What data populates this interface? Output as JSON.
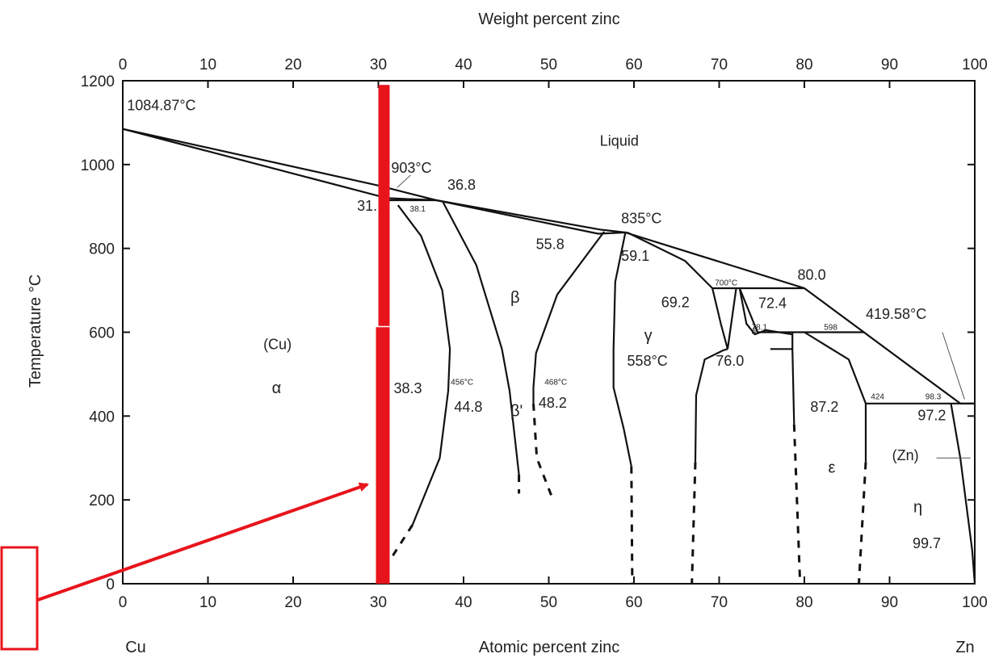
{
  "chart_data": {
    "type": "line",
    "title": "",
    "xlabel_top": "Weight percent zinc",
    "xlabel_bottom": "Atomic percent zinc",
    "ylabel": "Temperature °C",
    "xlim": [
      0,
      100
    ],
    "ylim": [
      0,
      1200
    ],
    "x_ticks": [
      "0",
      "10",
      "20",
      "30",
      "40",
      "50",
      "60",
      "70",
      "80",
      "90",
      "100"
    ],
    "x_ticks_top": [
      "0",
      "10",
      "20",
      "30",
      "40",
      "50",
      "60",
      "70",
      "80",
      "90",
      "100"
    ],
    "y_ticks": [
      "0",
      "200",
      "400",
      "600",
      "800",
      "1000",
      "1200"
    ],
    "endpoint_labels": {
      "left": "Cu",
      "right": "Zn"
    },
    "grid": false,
    "boundaries": [
      {
        "style": "solid",
        "points": [
          [
            0,
            1085
          ],
          [
            30,
            950
          ],
          [
            36.8,
            915
          ],
          [
            56,
            845
          ],
          [
            59,
            838
          ],
          [
            80,
            705
          ],
          [
            98.3,
            430
          ]
        ]
      },
      {
        "style": "solid",
        "points": [
          [
            0,
            1085
          ],
          [
            31,
            920
          ],
          [
            36.8,
            915
          ],
          [
            55.8,
            835
          ],
          [
            59.1,
            838
          ]
        ]
      },
      {
        "style": "solid",
        "points": [
          [
            31,
            915
          ],
          [
            36.8,
            915
          ]
        ]
      },
      {
        "style": "solid",
        "points": [
          [
            32.3,
            903
          ],
          [
            35,
            830
          ],
          [
            37.5,
            700
          ],
          [
            38.4,
            560
          ],
          [
            38.2,
            460
          ],
          [
            37.2,
            300
          ],
          [
            34,
            140
          ]
        ]
      },
      {
        "style": "dash",
        "points": [
          [
            34,
            140
          ],
          [
            31,
            45
          ]
        ]
      },
      {
        "style": "solid",
        "points": [
          [
            37.6,
            910
          ],
          [
            41.5,
            760
          ],
          [
            44.5,
            560
          ],
          [
            45.4,
            460
          ],
          [
            46.5,
            260
          ]
        ]
      },
      {
        "style": "dash",
        "points": [
          [
            46.5,
            260
          ],
          [
            46.5,
            215
          ]
        ]
      },
      {
        "style": "solid",
        "points": [
          [
            56.5,
            840
          ],
          [
            51,
            690
          ],
          [
            48.5,
            550
          ],
          [
            48.2,
            468
          ],
          [
            48.2,
            430
          ]
        ]
      },
      {
        "style": "dash",
        "points": [
          [
            48.2,
            430
          ],
          [
            48.6,
            300
          ],
          [
            50.5,
            200
          ]
        ]
      },
      {
        "style": "solid",
        "points": [
          [
            59,
            838
          ],
          [
            57.8,
            720
          ],
          [
            57.6,
            560
          ],
          [
            57.6,
            468
          ],
          [
            58.8,
            370
          ],
          [
            59.7,
            280
          ]
        ]
      },
      {
        "style": "dash",
        "points": [
          [
            59.7,
            280
          ],
          [
            59.8,
            0
          ]
        ]
      },
      {
        "style": "solid",
        "points": [
          [
            59.2,
            838
          ],
          [
            66,
            770
          ],
          [
            69.2,
            705
          ],
          [
            70.2,
            620
          ],
          [
            71,
            560
          ]
        ]
      },
      {
        "style": "solid",
        "points": [
          [
            80,
            600
          ],
          [
            85.2,
            535
          ],
          [
            87.2,
            430
          ],
          [
            87.2,
            290
          ]
        ]
      },
      {
        "style": "dash",
        "points": [
          [
            87.2,
            290
          ],
          [
            86.4,
            0
          ]
        ]
      },
      {
        "style": "solid",
        "points": [
          [
            67.2,
            290
          ],
          [
            67.3,
            450
          ],
          [
            68.3,
            535
          ],
          [
            70.5,
            557
          ],
          [
            71,
            560
          ]
        ]
      },
      {
        "style": "dash",
        "points": [
          [
            67.2,
            290
          ],
          [
            66.8,
            0
          ]
        ]
      },
      {
        "style": "solid",
        "points": [
          [
            69.2,
            705
          ],
          [
            72.4,
            705
          ],
          [
            80,
            705
          ]
        ]
      },
      {
        "style": "solid",
        "points": [
          [
            72.4,
            705
          ],
          [
            74.5,
            600
          ],
          [
            78,
            600
          ]
        ]
      },
      {
        "style": "solid",
        "points": [
          [
            72.4,
            705
          ],
          [
            73.2,
            620
          ],
          [
            74.2,
            595
          ],
          [
            75.5,
            605
          ],
          [
            78.5,
            595
          ]
        ]
      },
      {
        "style": "solid",
        "points": [
          [
            71,
            560
          ],
          [
            72,
            705
          ]
        ]
      },
      {
        "style": "solid",
        "points": [
          [
            76,
            560
          ],
          [
            78.6,
            560
          ]
        ]
      },
      {
        "style": "solid",
        "points": [
          [
            78.6,
            600
          ],
          [
            78.6,
            560
          ],
          [
            78.8,
            380
          ]
        ]
      },
      {
        "style": "dash",
        "points": [
          [
            78.8,
            380
          ],
          [
            79.5,
            0
          ]
        ]
      },
      {
        "style": "solid",
        "points": [
          [
            78,
            600
          ],
          [
            87,
            600
          ]
        ]
      },
      {
        "style": "solid",
        "points": [
          [
            87.2,
            430
          ],
          [
            100,
            430
          ]
        ]
      },
      {
        "style": "solid",
        "points": [
          [
            97.2,
            430
          ],
          [
            98.3,
            300
          ],
          [
            99.7,
            80
          ],
          [
            100,
            0
          ]
        ]
      },
      {
        "style": "solid",
        "points": [
          [
            98.3,
            430
          ],
          [
            100,
            430
          ]
        ]
      }
    ],
    "annotations": [
      {
        "text": "1084.87°C",
        "x": 0.5,
        "y": 1130,
        "size": "normal"
      },
      {
        "text": "903°C",
        "x": 31.5,
        "y": 980,
        "size": "normal"
      },
      {
        "text": "36.8",
        "x": 38.1,
        "y": 940,
        "size": "normal"
      },
      {
        "text": "31.",
        "x": 27.5,
        "y": 890,
        "size": "normal"
      },
      {
        "text": "38.1",
        "x": 33.7,
        "y": 888,
        "size": "small"
      },
      {
        "text": "Liquid",
        "x": 56,
        "y": 1045,
        "size": "normal"
      },
      {
        "text": "835°C",
        "x": 58.5,
        "y": 860,
        "size": "normal"
      },
      {
        "text": "55.8",
        "x": 48.5,
        "y": 798,
        "size": "normal"
      },
      {
        "text": "59.1",
        "x": 58.5,
        "y": 770,
        "size": "normal"
      },
      {
        "text": "80.0",
        "x": 79.2,
        "y": 725,
        "size": "normal"
      },
      {
        "text": "700°C",
        "x": 69.5,
        "y": 712,
        "size": "small"
      },
      {
        "text": "69.2",
        "x": 63.2,
        "y": 660,
        "size": "normal"
      },
      {
        "text": "72.4",
        "x": 74.6,
        "y": 658,
        "size": "normal"
      },
      {
        "text": "419.58°C",
        "x": 87.2,
        "y": 632,
        "size": "normal"
      },
      {
        "text": "598",
        "x": 82.3,
        "y": 606,
        "size": "small"
      },
      {
        "text": "78.1",
        "x": 73.8,
        "y": 606,
        "size": "small"
      },
      {
        "text": "β",
        "x": 45.5,
        "y": 670,
        "size": "greek"
      },
      {
        "text": "(Cu)",
        "x": 16.5,
        "y": 560,
        "size": "normal"
      },
      {
        "text": "α",
        "x": 17.5,
        "y": 455,
        "size": "greek"
      },
      {
        "text": "γ",
        "x": 61.2,
        "y": 580,
        "size": "greek"
      },
      {
        "text": "558°C",
        "x": 59.2,
        "y": 520,
        "size": "normal"
      },
      {
        "text": "76.0",
        "x": 69.6,
        "y": 520,
        "size": "normal"
      },
      {
        "text": "δ",
        "x": 73.8,
        "y": 595,
        "size": "small"
      },
      {
        "text": "38.3",
        "x": 31.8,
        "y": 455,
        "size": "normal"
      },
      {
        "text": "456°C",
        "x": 38.5,
        "y": 475,
        "size": "small"
      },
      {
        "text": "44.8",
        "x": 38.9,
        "y": 410,
        "size": "normal"
      },
      {
        "text": "468°C",
        "x": 49.5,
        "y": 475,
        "size": "small"
      },
      {
        "text": "48.2",
        "x": 48.8,
        "y": 420,
        "size": "normal"
      },
      {
        "text": "β'",
        "x": 45.5,
        "y": 400,
        "size": "greek"
      },
      {
        "text": "87.2",
        "x": 80.7,
        "y": 410,
        "size": "normal"
      },
      {
        "text": "424",
        "x": 87.8,
        "y": 440,
        "size": "small"
      },
      {
        "text": "98.3",
        "x": 94.2,
        "y": 440,
        "size": "small"
      },
      {
        "text": "97.2",
        "x": 93.3,
        "y": 390,
        "size": "normal"
      },
      {
        "text": "(Zn)",
        "x": 90.3,
        "y": 295,
        "size": "normal"
      },
      {
        "text": "ε",
        "x": 82.8,
        "y": 265,
        "size": "greek"
      },
      {
        "text": "η",
        "x": 92.8,
        "y": 170,
        "size": "greek"
      },
      {
        "text": "99.7",
        "x": 92.7,
        "y": 85,
        "size": "normal"
      }
    ],
    "highlight": {
      "composition_marker_x": 30,
      "marker_color": "#e8141c",
      "arrow_color": "#e8141c",
      "box_color": "#e8141c"
    }
  }
}
